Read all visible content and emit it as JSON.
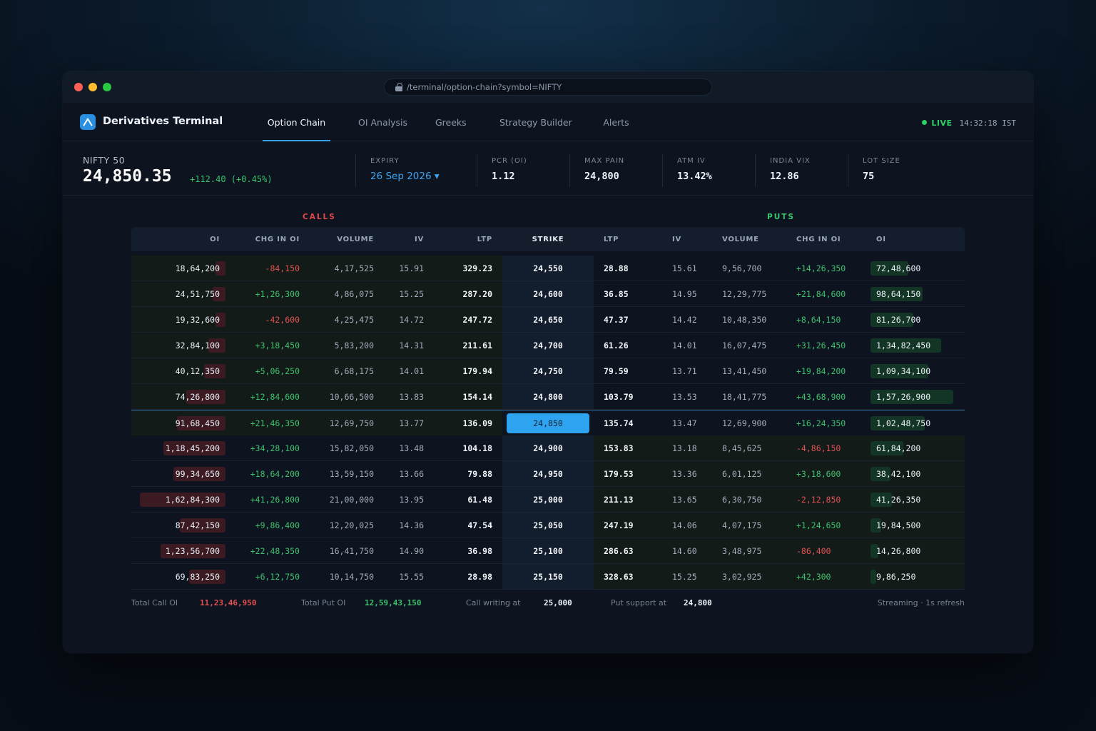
{
  "browser": {
    "url": "/terminal/option-chain?symbol=NIFTY"
  },
  "app": {
    "name": "Derivatives Terminal",
    "tabs": [
      {
        "label": "Option Chain",
        "active": true
      },
      {
        "label": "OI Analysis",
        "active": false
      },
      {
        "label": "Greeks",
        "active": false
      },
      {
        "label": "Strategy Builder",
        "active": false
      },
      {
        "label": "Alerts",
        "active": false
      }
    ],
    "live_label": "LIVE",
    "time": "14:32:18 IST"
  },
  "summary": {
    "symbol": "NIFTY 50",
    "spot": "24,850.35",
    "change": "+112.40 (+0.45%)",
    "expiry_label": "EXPIRY",
    "expiry_value": "26 Sep 2026 ▾",
    "metrics": [
      {
        "label": "PCR (OI)",
        "value": "1.12"
      },
      {
        "label": "MAX PAIN",
        "value": "24,800"
      },
      {
        "label": "ATM IV",
        "value": "13.42%"
      },
      {
        "label": "INDIA VIX",
        "value": "12.86"
      },
      {
        "label": "LOT SIZE",
        "value": "75"
      }
    ]
  },
  "table": {
    "calls_label": "CALLS",
    "puts_label": "PUTS",
    "headers": {
      "call_oi": "OI",
      "call_chg": "CHG IN OI",
      "call_vol": "VOLUME",
      "call_iv": "IV",
      "call_ltp": "LTP",
      "strike": "STRIKE",
      "put_ltp": "LTP",
      "put_iv": "IV",
      "put_vol": "VOLUME",
      "put_chg": "CHG IN OI",
      "put_oi": "OI"
    },
    "rows": [
      {
        "call_oi": "18,64,200",
        "call_chg": "-84,150",
        "call_vol": "4,17,525",
        "call_iv": "15.91",
        "call_ltp": "329.23",
        "strike": "24,550",
        "put_ltp": "28.88",
        "put_iv": "15.61",
        "put_vol": "9,56,700",
        "put_chg": "+14,26,350",
        "put_oi": "72,48,600",
        "call_oi_value": 1864200,
        "put_oi_value": 7248600,
        "zone": "itm-call"
      },
      {
        "call_oi": "24,51,750",
        "call_chg": "+1,26,300",
        "call_vol": "4,86,075",
        "call_iv": "15.25",
        "call_ltp": "287.20",
        "strike": "24,600",
        "put_ltp": "36.85",
        "put_iv": "14.95",
        "put_vol": "12,29,775",
        "put_chg": "+21,84,600",
        "put_oi": "98,64,150",
        "call_oi_value": 2451750,
        "put_oi_value": 9864150,
        "zone": "itm-call"
      },
      {
        "call_oi": "19,32,600",
        "call_chg": "-42,600",
        "call_vol": "4,25,475",
        "call_iv": "14.72",
        "call_ltp": "247.72",
        "strike": "24,650",
        "put_ltp": "47.37",
        "put_iv": "14.42",
        "put_vol": "10,48,350",
        "put_chg": "+8,64,150",
        "put_oi": "81,26,700",
        "call_oi_value": 1932600,
        "put_oi_value": 8126700,
        "zone": "itm-call"
      },
      {
        "call_oi": "32,84,100",
        "call_chg": "+3,18,450",
        "call_vol": "5,83,200",
        "call_iv": "14.31",
        "call_ltp": "211.61",
        "strike": "24,700",
        "put_ltp": "61.26",
        "put_iv": "14.01",
        "put_vol": "16,07,475",
        "put_chg": "+31,26,450",
        "put_oi": "1,34,82,450",
        "call_oi_value": 3284100,
        "put_oi_value": 13482450,
        "zone": "itm-call"
      },
      {
        "call_oi": "40,12,350",
        "call_chg": "+5,06,250",
        "call_vol": "6,68,175",
        "call_iv": "14.01",
        "call_ltp": "179.94",
        "strike": "24,750",
        "put_ltp": "79.59",
        "put_iv": "13.71",
        "put_vol": "13,41,450",
        "put_chg": "+19,84,200",
        "put_oi": "1,09,34,100",
        "call_oi_value": 4012350,
        "put_oi_value": 10934100,
        "zone": "itm-call"
      },
      {
        "call_oi": "74,26,800",
        "call_chg": "+12,84,600",
        "call_vol": "10,66,500",
        "call_iv": "13.83",
        "call_ltp": "154.14",
        "strike": "24,800",
        "put_ltp": "103.79",
        "put_iv": "13.53",
        "put_vol": "18,41,775",
        "put_chg": "+43,68,900",
        "put_oi": "1,57,26,900",
        "call_oi_value": 7426800,
        "put_oi_value": 15726900,
        "zone": "itm-call"
      },
      {
        "call_oi": "91,68,450",
        "call_chg": "+21,46,350",
        "call_vol": "12,69,750",
        "call_iv": "13.77",
        "call_ltp": "136.09",
        "strike": "24,850",
        "put_ltp": "135.74",
        "put_iv": "13.47",
        "put_vol": "12,69,900",
        "put_chg": "+16,24,350",
        "put_oi": "1,02,48,750",
        "call_oi_value": 9168450,
        "put_oi_value": 10248750,
        "zone": "atm"
      },
      {
        "call_oi": "1,18,45,200",
        "call_chg": "+34,28,100",
        "call_vol": "15,82,050",
        "call_iv": "13.48",
        "call_ltp": "104.18",
        "strike": "24,900",
        "put_ltp": "153.83",
        "put_iv": "13.18",
        "put_vol": "8,45,625",
        "put_chg": "-4,86,150",
        "put_oi": "61,84,200",
        "call_oi_value": 11845200,
        "put_oi_value": 6184200,
        "zone": "itm-put"
      },
      {
        "call_oi": "99,34,650",
        "call_chg": "+18,64,200",
        "call_vol": "13,59,150",
        "call_iv": "13.66",
        "call_ltp": "79.88",
        "strike": "24,950",
        "put_ltp": "179.53",
        "put_iv": "13.36",
        "put_vol": "6,01,125",
        "put_chg": "+3,18,600",
        "put_oi": "38,42,100",
        "call_oi_value": 9934650,
        "put_oi_value": 3842100,
        "zone": "itm-put"
      },
      {
        "call_oi": "1,62,84,300",
        "call_chg": "+41,26,800",
        "call_vol": "21,00,000",
        "call_iv": "13.95",
        "call_ltp": "61.48",
        "strike": "25,000",
        "put_ltp": "211.13",
        "put_iv": "13.65",
        "put_vol": "6,30,750",
        "put_chg": "-2,12,850",
        "put_oi": "41,26,350",
        "call_oi_value": 16284300,
        "put_oi_value": 4126350,
        "zone": "itm-put"
      },
      {
        "call_oi": "87,42,150",
        "call_chg": "+9,86,400",
        "call_vol": "12,20,025",
        "call_iv": "14.36",
        "call_ltp": "47.54",
        "strike": "25,050",
        "put_ltp": "247.19",
        "put_iv": "14.06",
        "put_vol": "4,07,175",
        "put_chg": "+1,24,650",
        "put_oi": "19,84,500",
        "call_oi_value": 8742150,
        "put_oi_value": 1984500,
        "zone": "itm-put"
      },
      {
        "call_oi": "1,23,56,700",
        "call_chg": "+22,48,350",
        "call_vol": "16,41,750",
        "call_iv": "14.90",
        "call_ltp": "36.98",
        "strike": "25,100",
        "put_ltp": "286.63",
        "put_iv": "14.60",
        "put_vol": "3,48,975",
        "put_chg": "-86,400",
        "put_oi": "14,26,800",
        "call_oi_value": 12356700,
        "put_oi_value": 1426800,
        "zone": "itm-put"
      },
      {
        "call_oi": "69,83,250",
        "call_chg": "+6,12,750",
        "call_vol": "10,14,750",
        "call_iv": "15.55",
        "call_ltp": "28.98",
        "strike": "25,150",
        "put_ltp": "328.63",
        "put_iv": "15.25",
        "put_vol": "3,02,925",
        "put_chg": "+42,300",
        "put_oi": "9,86,250",
        "call_oi_value": 6983250,
        "put_oi_value": 986250,
        "zone": "itm-put"
      }
    ]
  },
  "footer": {
    "total_call_label": "Total Call OI",
    "total_call_value": "11,23,46,950",
    "total_put_label": "Total Put OI",
    "total_put_value": "12,59,43,150",
    "call_writing_label": "Call writing at",
    "call_writing_value": "25,000",
    "put_support_label": "Put support at",
    "put_support_value": "24,800",
    "status": "Streaming · 1s refresh"
  },
  "colors": {
    "accent": "#2ea3ef",
    "positive": "#3dc06c",
    "negative": "#e25050",
    "live": "#2bd068"
  }
}
